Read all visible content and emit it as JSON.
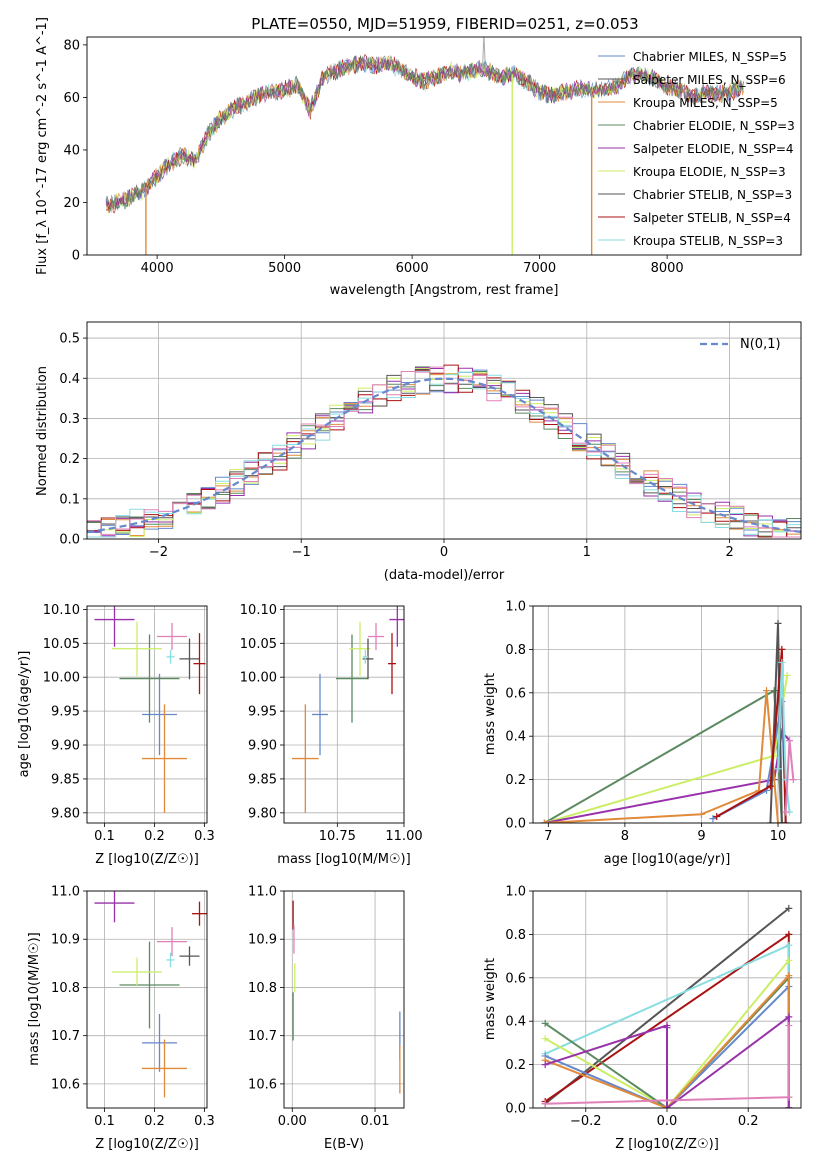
{
  "figure_title": "PLATE=0550, MJD=51959, FIBERID=0251, z=0.053",
  "colors": {
    "c0": "#6688cc",
    "c1": "#e08a3a",
    "c2": "#5c8a60",
    "c3": "#9932aa",
    "c4": "#ccee66",
    "c5": "#555555",
    "c6": "#aa1111",
    "c7": "#88dde0",
    "c8": "#e080b8"
  },
  "chart_data": [
    {
      "id": "spectrum",
      "type": "line",
      "xlabel": "wavelength [Angstrom, rest frame]",
      "ylabel": "Flux [f_λ 10^-17 erg cm^-2 s^-1 A^-1]",
      "xlim": [
        3450,
        9050
      ],
      "ylim": [
        0,
        83
      ],
      "xticks": [
        4000,
        5000,
        6000,
        7000,
        8000
      ],
      "yticks": [
        0,
        20,
        40,
        60,
        80
      ],
      "grid": false,
      "legend_position": "top-right",
      "legend": [
        {
          "label": "Chabrier MILES, N_SSP=5",
          "color": "c0"
        },
        {
          "label": "Salpeter MILES, N_SSP=6",
          "color": "c5"
        },
        {
          "label": "Kroupa MILES, N_SSP=5",
          "color": "c1"
        },
        {
          "label": "Chabrier ELODIE, N_SSP=3",
          "color": "c2"
        },
        {
          "label": "Salpeter ELODIE, N_SSP=4",
          "color": "c3"
        },
        {
          "label": "Kroupa ELODIE, N_SSP=3",
          "color": "c4"
        },
        {
          "label": "Chabrier STELIB, N_SSP=3",
          "color": "c5"
        },
        {
          "label": "Salpeter STELIB, N_SSP=4",
          "color": "c6"
        },
        {
          "label": "Kroupa STELIB, N_SSP=3",
          "color": "c7"
        }
      ],
      "continuum": {
        "x": [
          3600,
          3700,
          3800,
          3900,
          4000,
          4100,
          4200,
          4300,
          4400,
          4500,
          4600,
          4700,
          4800,
          4900,
          5000,
          5100,
          5200,
          5300,
          5400,
          5500,
          5600,
          5700,
          5800,
          5900,
          6000,
          6100,
          6200,
          6300,
          6400,
          6500,
          6600,
          6700,
          6800,
          6900,
          7000,
          7100,
          7200,
          7300,
          7400,
          7500,
          7600,
          7700,
          7800,
          7900,
          8000,
          8100,
          8200,
          8300,
          8400,
          8500,
          8600
        ],
        "y": [
          19,
          20,
          22,
          25,
          30,
          35,
          38,
          36,
          46,
          52,
          56,
          58,
          61,
          62,
          63,
          65,
          55,
          68,
          70,
          72,
          73,
          72,
          73,
          71,
          68,
          66,
          68,
          70,
          69,
          71,
          70,
          68,
          69,
          66,
          62,
          61,
          62,
          63,
          63,
          63,
          64,
          68,
          69,
          67,
          64,
          63,
          60,
          62,
          61,
          62,
          64
        ]
      },
      "dips": [
        {
          "x": 3912,
          "to": 0,
          "color": "c1"
        },
        {
          "x": 6785,
          "to": 0,
          "color": "c4"
        },
        {
          "x": 7408,
          "to": 0,
          "color": "c1"
        }
      ],
      "emission_peak": {
        "x": 6563,
        "y": 84
      }
    },
    {
      "id": "residuals",
      "type": "step",
      "xlabel": "(data-model)/error",
      "ylabel": "Normed distribution",
      "xlim": [
        -2.5,
        2.5
      ],
      "ylim": [
        0,
        0.54
      ],
      "xticks": [
        -2,
        -1,
        0,
        1,
        2
      ],
      "yticks": [
        0,
        0.1,
        0.2,
        0.3,
        0.4,
        0.5
      ],
      "grid": true,
      "bin_width": 0.1,
      "legend_position": "top-right",
      "reference_label": "N(0,1)"
    },
    {
      "id": "age_vs_Z",
      "type": "scatter",
      "xlabel": "Z [log10(Z/Z☉)]",
      "ylabel": "age [log10(age/yr)]",
      "xlim": [
        0.065,
        0.305
      ],
      "ylim": [
        9.785,
        10.105
      ],
      "xticks": [
        0.1,
        0.2,
        0.3
      ],
      "yticks": [
        9.8,
        9.85,
        9.9,
        9.95,
        10.0,
        10.05,
        10.1
      ],
      "grid": true,
      "points": [
        {
          "color": "c0",
          "x": 0.21,
          "y": 9.945,
          "xerr": 0.035,
          "yerr": 0.06
        },
        {
          "color": "c1",
          "x": 0.22,
          "y": 9.88,
          "xerr": 0.045,
          "yerr": 0.08
        },
        {
          "color": "c2",
          "x": 0.19,
          "y": 9.998,
          "xerr": 0.06,
          "yerr": 0.065
        },
        {
          "color": "c3",
          "x": 0.12,
          "y": 10.085,
          "xerr": 0.04,
          "yerr": 0.04
        },
        {
          "color": "c4",
          "x": 0.165,
          "y": 10.042,
          "xerr": 0.05,
          "yerr": 0.04
        },
        {
          "color": "c5",
          "x": 0.27,
          "y": 10.027,
          "xerr": 0.02,
          "yerr": 0.03
        },
        {
          "color": "c6",
          "x": 0.29,
          "y": 10.02,
          "xerr": 0.012,
          "yerr": 0.045
        },
        {
          "color": "c7",
          "x": 0.232,
          "y": 10.03,
          "xerr": 0.008,
          "yerr": 0.01
        },
        {
          "color": "c8",
          "x": 0.235,
          "y": 10.06,
          "xerr": 0.03,
          "yerr": 0.02
        }
      ]
    },
    {
      "id": "age_vs_mass",
      "type": "scatter",
      "xlabel": "mass [log10(M/M☉)]",
      "xlim": [
        10.55,
        11.0
      ],
      "ylim": [
        9.785,
        10.105
      ],
      "xticks": [
        10.75,
        11.0
      ],
      "tick_labels": [
        "10.75",
        "11.00"
      ],
      "yticks": [
        9.8,
        9.85,
        9.9,
        9.95,
        10.0,
        10.05,
        10.1
      ],
      "grid": true,
      "points": [
        {
          "color": "c0",
          "x": 10.685,
          "y": 9.945,
          "xerr": 0.03,
          "yerr": 0.06
        },
        {
          "color": "c1",
          "x": 10.63,
          "y": 9.88,
          "xerr": 0.05,
          "yerr": 0.08
        },
        {
          "color": "c2",
          "x": 10.805,
          "y": 9.998,
          "xerr": 0.06,
          "yerr": 0.065
        },
        {
          "color": "c3",
          "x": 10.975,
          "y": 10.085,
          "xerr": 0.03,
          "yerr": 0.04
        },
        {
          "color": "c4",
          "x": 10.835,
          "y": 10.042,
          "xerr": 0.04,
          "yerr": 0.04
        },
        {
          "color": "c5",
          "x": 10.865,
          "y": 10.027,
          "xerr": 0.02,
          "yerr": 0.03
        },
        {
          "color": "c6",
          "x": 10.955,
          "y": 10.02,
          "xerr": 0.015,
          "yerr": 0.045
        },
        {
          "color": "c7",
          "x": 10.855,
          "y": 10.03,
          "xerr": 0.01,
          "yerr": 0.01
        },
        {
          "color": "c8",
          "x": 10.895,
          "y": 10.06,
          "xerr": 0.03,
          "yerr": 0.02
        }
      ]
    },
    {
      "id": "massweight_vs_age",
      "type": "line",
      "xlabel": "age [log10(age/yr)]",
      "ylabel": "mass weight",
      "xlim": [
        6.8,
        10.3
      ],
      "ylim": [
        0,
        1.0
      ],
      "xticks": [
        7,
        8,
        9,
        10
      ],
      "yticks": [
        0,
        0.2,
        0.4,
        0.6,
        0.8,
        1.0
      ],
      "grid": true,
      "series": [
        {
          "color": "c2",
          "x": [
            6.95,
            9.95,
            10.05
          ],
          "y": [
            0.0,
            0.61,
            0.0
          ]
        },
        {
          "color": "c4",
          "x": [
            6.95,
            9.95,
            10.12
          ],
          "y": [
            0.0,
            0.31,
            0.68
          ]
        },
        {
          "color": "c3",
          "x": [
            6.95,
            9.95,
            10.05,
            10.15
          ],
          "y": [
            0.0,
            0.2,
            0.42,
            0.38
          ]
        },
        {
          "color": "c1",
          "x": [
            6.95,
            9.0,
            9.75,
            9.85,
            10.0
          ],
          "y": [
            0.0,
            0.04,
            0.15,
            0.61,
            0.0
          ]
        },
        {
          "color": "c0",
          "x": [
            9.15,
            9.85,
            10.05,
            10.1
          ],
          "y": [
            0.02,
            0.15,
            0.56,
            0.0
          ]
        },
        {
          "color": "c5",
          "x": [
            9.9,
            10.0,
            10.05
          ],
          "y": [
            0.0,
            0.92,
            0.0
          ]
        },
        {
          "color": "c6",
          "x": [
            9.2,
            9.9,
            10.05,
            10.1
          ],
          "y": [
            0.03,
            0.17,
            0.8,
            0.0
          ]
        },
        {
          "color": "c7",
          "x": [
            10.0,
            10.05,
            10.1,
            10.15
          ],
          "y": [
            0.25,
            0.74,
            0.2,
            0.05
          ]
        },
        {
          "color": "c8",
          "x": [
            10.1,
            10.15,
            10.2
          ],
          "y": [
            0.05,
            0.38,
            0.2
          ]
        }
      ]
    },
    {
      "id": "mass_vs_Z",
      "type": "scatter",
      "xlabel": "Z [log10(Z/Z☉)]",
      "ylabel": "mass [log10(M/M☉)]",
      "xlim": [
        0.065,
        0.305
      ],
      "ylim": [
        10.55,
        11.0
      ],
      "xticks": [
        0.1,
        0.2,
        0.3
      ],
      "yticks": [
        10.6,
        10.7,
        10.8,
        10.9,
        11.0
      ],
      "grid": true,
      "points": [
        {
          "color": "c0",
          "x": 0.21,
          "y": 10.685,
          "xerr": 0.035,
          "yerr": 0.06
        },
        {
          "color": "c1",
          "x": 0.22,
          "y": 10.632,
          "xerr": 0.045,
          "yerr": 0.06
        },
        {
          "color": "c2",
          "x": 0.19,
          "y": 10.805,
          "xerr": 0.06,
          "yerr": 0.09
        },
        {
          "color": "c3",
          "x": 0.12,
          "y": 10.975,
          "xerr": 0.04,
          "yerr": 0.04
        },
        {
          "color": "c4",
          "x": 0.165,
          "y": 10.832,
          "xerr": 0.05,
          "yerr": 0.03
        },
        {
          "color": "c5",
          "x": 0.27,
          "y": 10.865,
          "xerr": 0.02,
          "yerr": 0.02
        },
        {
          "color": "c6",
          "x": 0.29,
          "y": 10.953,
          "xerr": 0.015,
          "yerr": 0.025
        },
        {
          "color": "c7",
          "x": 0.232,
          "y": 10.857,
          "xerr": 0.008,
          "yerr": 0.015
        },
        {
          "color": "c8",
          "x": 0.235,
          "y": 10.895,
          "xerr": 0.03,
          "yerr": 0.03
        }
      ]
    },
    {
      "id": "mass_vs_ebv",
      "type": "scatter",
      "xlabel": "E(B-V)",
      "xlim": [
        -0.001,
        0.0135
      ],
      "ylim": [
        10.55,
        11.0
      ],
      "xticks": [
        0.0,
        0.01
      ],
      "tick_labels": [
        "0.00",
        "0.01"
      ],
      "yticks": [
        10.6,
        10.7,
        10.8,
        10.9,
        11.0
      ],
      "grid": true,
      "points": [
        {
          "color": "c6",
          "x": 0.0001,
          "y": 10.95,
          "yerr": 0.03
        },
        {
          "color": "c8",
          "x": 0.0002,
          "y": 10.9,
          "yerr": 0.03
        },
        {
          "color": "c4",
          "x": 0.0003,
          "y": 10.82,
          "yerr": 0.03
        },
        {
          "color": "c2",
          "x": 0.0001,
          "y": 10.74,
          "yerr": 0.05
        },
        {
          "color": "c0",
          "x": 0.013,
          "y": 10.7,
          "yerr": 0.05
        },
        {
          "color": "c1",
          "x": 0.013,
          "y": 10.63,
          "yerr": 0.05
        }
      ]
    },
    {
      "id": "massweight_vs_Z",
      "type": "line",
      "xlabel": "Z [log10(Z/Z☉)]",
      "ylabel": "mass weight",
      "xlim": [
        -0.33,
        0.33
      ],
      "ylim": [
        0,
        1.0
      ],
      "xticks": [
        -0.2,
        0.0,
        0.2
      ],
      "yticks": [
        0,
        0.2,
        0.4,
        0.6,
        0.8,
        1.0
      ],
      "grid": true,
      "series": [
        {
          "color": "c5",
          "x": [
            -0.3,
            0.3
          ],
          "y": [
            0.02,
            0.92
          ]
        },
        {
          "color": "c6",
          "x": [
            -0.3,
            0.3,
            0.3
          ],
          "y": [
            0.03,
            0.8,
            0.0
          ]
        },
        {
          "color": "c7",
          "x": [
            -0.3,
            0.3,
            0.3
          ],
          "y": [
            0.25,
            0.75,
            0.05
          ]
        },
        {
          "color": "c4",
          "x": [
            -0.3,
            0.0,
            0.3
          ],
          "y": [
            0.32,
            0.0,
            0.68
          ]
        },
        {
          "color": "c2",
          "x": [
            -0.3,
            0.0,
            0.3,
            0.3
          ],
          "y": [
            0.39,
            0.0,
            0.6,
            0.0
          ]
        },
        {
          "color": "c0",
          "x": [
            -0.3,
            0.0,
            0.3,
            0.3
          ],
          "y": [
            0.24,
            0.0,
            0.56,
            0.0
          ]
        },
        {
          "color": "c1",
          "x": [
            -0.3,
            0.0,
            0.3,
            0.3
          ],
          "y": [
            0.22,
            0.0,
            0.61,
            0.0
          ]
        },
        {
          "color": "c3",
          "x": [
            -0.3,
            0.0,
            0.0,
            0.0,
            0.3,
            0.3
          ],
          "y": [
            0.2,
            0.38,
            0.37,
            0.0,
            0.42,
            0.0
          ]
        },
        {
          "color": "c8",
          "x": [
            -0.3,
            0.3,
            0.3
          ],
          "y": [
            0.02,
            0.05,
            0.38
          ]
        }
      ]
    }
  ]
}
